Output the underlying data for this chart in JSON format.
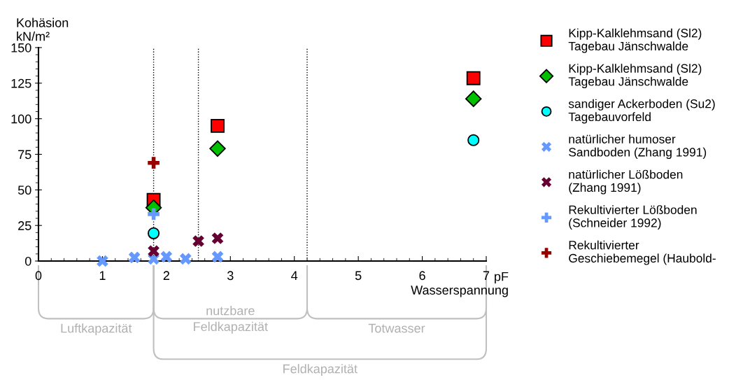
{
  "chart_data": {
    "type": "scatter",
    "ylabel": "Kohäsion\nkN/m²",
    "xlabel": "pF\nWasserspannung",
    "xlim": [
      0,
      7
    ],
    "xticks": [
      0,
      1,
      2,
      3,
      4,
      5,
      6,
      7
    ],
    "ylim": [
      0,
      150
    ],
    "yticks": [
      0,
      25,
      50,
      75,
      100,
      125,
      150
    ],
    "grid": false,
    "legend": "right",
    "series": [
      {
        "name": "Kipp-Kalklehmsand (Sl2)\nTagebau Jänschwalde",
        "color": "#ff0000",
        "marker": "square",
        "x": [
          1.8,
          2.8,
          6.8
        ],
        "values": [
          43,
          95,
          128.5
        ]
      },
      {
        "name": "Kipp-Kalklehmsand (Sl2)\nTagebau Jänschwalde",
        "color": "#00c000",
        "marker": "diamond",
        "x": [
          1.8,
          2.8,
          6.8
        ],
        "values": [
          37.5,
          79,
          114
        ]
      },
      {
        "name": "sandiger Ackerboden (Su2)\nTagebauvorfeld",
        "color": "#00ffff",
        "marker": "circle",
        "x": [
          1.8,
          6.8
        ],
        "values": [
          19.5,
          85
        ]
      },
      {
        "name": "natürlicher humoser\nSandboden (Zhang 1991)",
        "color": "#6699ff",
        "marker": "cross",
        "x": [
          1.0,
          1.5,
          1.8,
          2.0,
          2.3,
          2.8
        ],
        "values": [
          0,
          2.5,
          1.5,
          3,
          1.5,
          3
        ]
      },
      {
        "name": "natürlicher Lößboden\n(Zhang 1991)",
        "color": "#660033",
        "marker": "cross",
        "x": [
          1.8,
          2.5,
          2.8
        ],
        "values": [
          7,
          14,
          16
        ]
      },
      {
        "name": "Rekultivierter Lößboden\n(Schneider 1992)",
        "color": "#6699ff",
        "marker": "plus",
        "x": [
          1.8
        ],
        "values": [
          33
        ]
      },
      {
        "name": "Rekultivierter\nGeschiebemegel (Haubold-",
        "color": "#990000",
        "marker": "plus",
        "x": [
          1.8
        ],
        "values": [
          69
        ]
      }
    ],
    "ref_lines": [
      {
        "axis": "x",
        "value": 1.8,
        "color": "#000000",
        "line_style": "dotted"
      },
      {
        "axis": "x",
        "value": 2.5,
        "color": "#000000",
        "line_style": "dotted"
      },
      {
        "axis": "x",
        "value": 4.2,
        "color": "#000000",
        "line_style": "dotted"
      }
    ],
    "annotations": [
      "Luftkapazität",
      "nutzbare\nFeldkapazität",
      "Totwasser",
      "Feldkapazität"
    ]
  }
}
